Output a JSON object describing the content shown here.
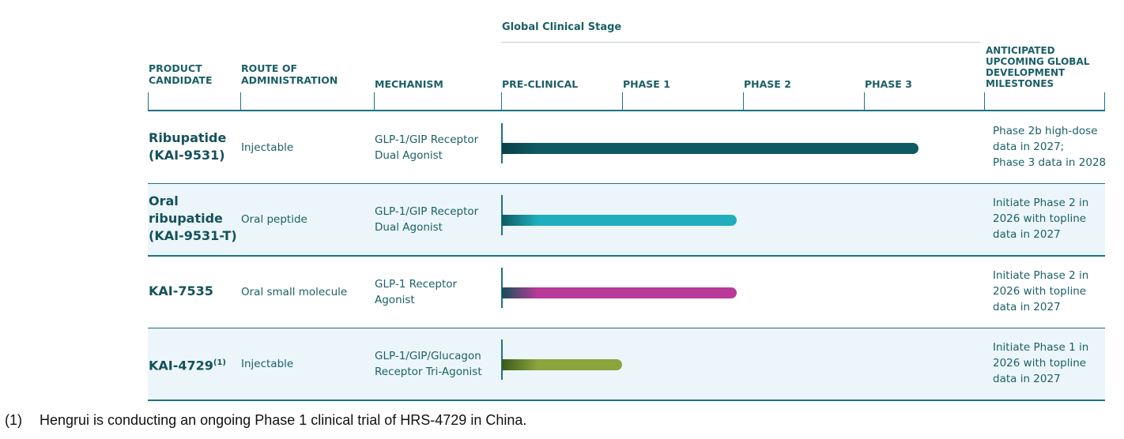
{
  "chart_data": {
    "type": "bar",
    "orientation": "horizontal",
    "group_title": "Global Clinical Stage",
    "columns": {
      "product": "PRODUCT CANDIDATE",
      "route": "ROUTE OF ADMINISTRATION",
      "mechanism": "MECHANISM",
      "milestones": "ANTICIPATED UPCOMING GLOBAL DEVELOPMENT MILESTONES"
    },
    "x_categories": [
      "PRE-CLINICAL",
      "PHASE 1",
      "PHASE 2",
      "PHASE 3"
    ],
    "x_range": [
      0,
      4
    ],
    "rows": [
      {
        "name": "Ribupatide (KAI-9531)",
        "name_lines": [
          "Ribupatide",
          "(KAI-9531)"
        ],
        "name_sup": "",
        "route": "Injectable",
        "mechanism_lines": [
          "GLP-1/GIP Receptor",
          "Dual Agonist"
        ],
        "milestone_lines": [
          "Phase 2b high-dose",
          "data in 2027;",
          "Phase 3 data in 2028"
        ],
        "stage_value": 3.45,
        "color": "#0d5a63",
        "start_color": "#0a3f47"
      },
      {
        "name": "Oral ribupatide (KAI-9531-T)",
        "name_lines": [
          "Oral",
          "ribupatide",
          "(KAI-9531-T)"
        ],
        "name_sup": "",
        "route": "Oral peptide",
        "mechanism_lines": [
          "GLP-1/GIP Receptor",
          "Dual Agonist"
        ],
        "milestone_lines": [
          "Initiate Phase 2 in",
          "2026 with topline",
          "data in 2027"
        ],
        "stage_value": 1.95,
        "color": "#1eaebd",
        "start_color": "#0d5a63"
      },
      {
        "name": "KAI-7535",
        "name_lines": [
          "KAI-7535"
        ],
        "name_sup": "",
        "route": "Oral small molecule",
        "mechanism_lines": [
          "GLP-1 Receptor",
          "Agonist"
        ],
        "milestone_lines": [
          "Initiate Phase 2 in",
          "2026 with topline",
          "data in 2027"
        ],
        "stage_value": 1.95,
        "color": "#b93a99",
        "start_color": "#14515a"
      },
      {
        "name": "KAI-4729",
        "name_lines": [
          "KAI-4729"
        ],
        "name_sup": "(1)",
        "route": "Injectable",
        "mechanism_lines": [
          "GLP-1/GIP/Glucagon",
          "Receptor Tri-Agonist"
        ],
        "milestone_lines": [
          "Initiate Phase 1 in",
          "2026 with topline",
          "data in 2027"
        ],
        "stage_value": 1.0,
        "color": "#8aa53c",
        "start_color": "#3a5a1c"
      }
    ]
  },
  "footnote": {
    "number": "(1)",
    "text": "Hengrui is conducting an ongoing Phase 1 clinical trial of HRS-4729 in China."
  }
}
